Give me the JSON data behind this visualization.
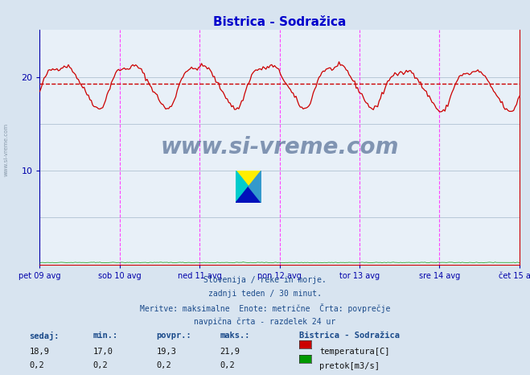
{
  "title": "Bistrica - Sodražica",
  "title_color": "#0000cc",
  "bg_color": "#d8e4f0",
  "plot_bg_color": "#e8f0f8",
  "grid_color": "#b8c8d8",
  "line_color": "#cc0000",
  "avg_line_color": "#cc0000",
  "avg_value": 19.3,
  "ymin": 0,
  "ymax": 25,
  "yticks": [
    10,
    20
  ],
  "x_labels": [
    "pet 09 avg",
    "sob 10 avg",
    "ned 11 avg",
    "pon 12 avg",
    "tor 13 avg",
    "sre 14 avg",
    "čet 15 avg"
  ],
  "vline_color": "#ff44ff",
  "watermark_text": "www.si-vreme.com",
  "watermark_color": "#1a3a6e",
  "footer_lines": [
    "Slovenija / reke in morje.",
    "zadnji teden / 30 minut.",
    "Meritve: maksimalne  Enote: metrične  Črta: povprečje",
    "navpična črta - razdelek 24 ur"
  ],
  "footer_color": "#1a4a8a",
  "table_headers": [
    "sedaj:",
    "min.:",
    "povpr.:",
    "maks.:"
  ],
  "table_row1": [
    "18,9",
    "17,0",
    "19,3",
    "21,9"
  ],
  "table_row2": [
    "0,2",
    "0,2",
    "0,2",
    "0,2"
  ],
  "legend_title": "Bistrica - Sodražica",
  "legend_items": [
    "temperatura[C]",
    "pretok[m3/s]"
  ],
  "legend_colors": [
    "#cc0000",
    "#009900"
  ],
  "sidebar_text": "www.si-vreme.com",
  "sidebar_color": "#8899aa",
  "n_points": 336,
  "temp_min": 17.0,
  "temp_max": 21.9,
  "figwidth": 6.59,
  "figheight": 4.66,
  "dpi": 100
}
